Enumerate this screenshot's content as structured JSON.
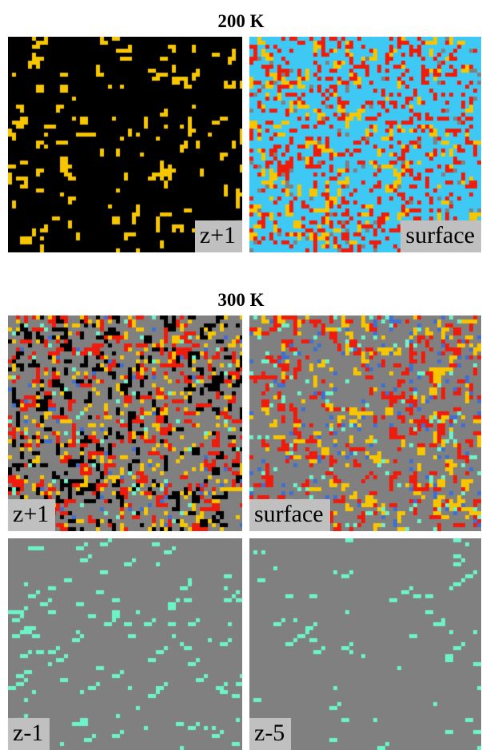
{
  "sections": [
    {
      "title": "200 K",
      "panels": [
        {
          "label": "z+1",
          "label_pos": "right",
          "base": "#000000",
          "species": [
            {
              "color": "#f8c600",
              "density": 0.11,
              "mode": "cluster"
            }
          ]
        },
        {
          "label": "surface",
          "label_pos": "right",
          "base": "#3ec8f4",
          "species": [
            {
              "color": "#f8c600",
              "density": 0.16,
              "mode": "cluster"
            },
            {
              "color": "#ee1c0c",
              "density": 0.24,
              "mode": "scatter"
            },
            {
              "color": "#808080",
              "density": 0.03,
              "mode": "scatter"
            }
          ]
        }
      ]
    },
    {
      "title": "300 K",
      "panels": [
        {
          "label": "z+1",
          "label_pos": "left",
          "base": "#808080",
          "species": [
            {
              "color": "#000000",
              "density": 0.26,
              "mode": "cluster"
            },
            {
              "color": "#ee1c0c",
              "density": 0.2,
              "mode": "cluster"
            },
            {
              "color": "#f8c600",
              "density": 0.1,
              "mode": "scatter"
            },
            {
              "color": "#3f6fd0",
              "density": 0.02,
              "mode": "scatter"
            },
            {
              "color": "#6df3c8",
              "density": 0.02,
              "mode": "scatter"
            }
          ]
        },
        {
          "label": "surface",
          "label_pos": "left",
          "base": "#808080",
          "species": [
            {
              "color": "#ee1c0c",
              "density": 0.22,
              "mode": "cluster"
            },
            {
              "color": "#f8c600",
              "density": 0.13,
              "mode": "cluster"
            },
            {
              "color": "#3f6fd0",
              "density": 0.05,
              "mode": "scatter"
            },
            {
              "color": "#6df3c8",
              "density": 0.04,
              "mode": "scatter"
            }
          ]
        },
        {
          "label": "z-1",
          "label_pos": "left",
          "base": "#808080",
          "species": [
            {
              "color": "#6df3c8",
              "density": 0.07,
              "mode": "streak"
            }
          ]
        },
        {
          "label": "z-5",
          "label_pos": "left",
          "base": "#808080",
          "species": [
            {
              "color": "#6df3c8",
              "density": 0.035,
              "mode": "streak"
            }
          ]
        }
      ]
    }
  ]
}
